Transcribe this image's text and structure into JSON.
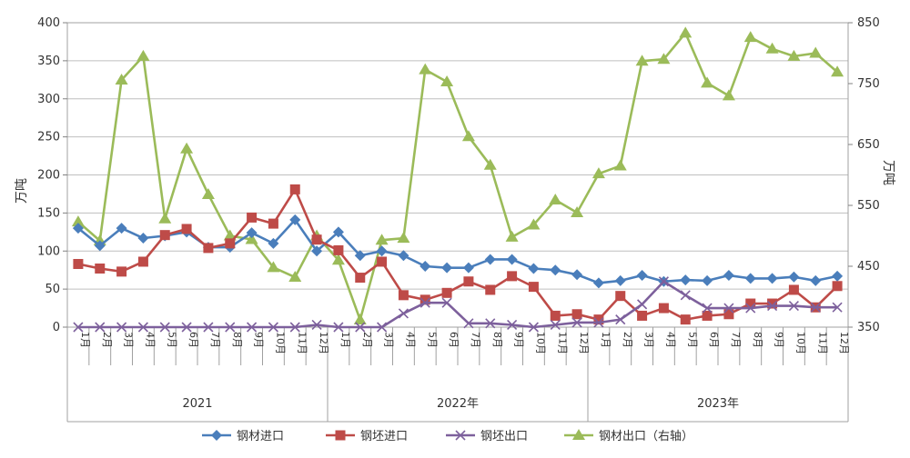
{
  "chart_data": {
    "type": "line",
    "ylabel_left": "万吨",
    "ylabel_right": "万吨",
    "ylim_left": [
      0,
      400
    ],
    "ylim_right": [
      350,
      850
    ],
    "yticks_left": [
      "0",
      "50",
      "100",
      "150",
      "200",
      "250",
      "300",
      "350",
      "400"
    ],
    "yticks_right": [
      "350",
      "450",
      "550",
      "650",
      "750",
      "850"
    ],
    "months": [
      "1月",
      "2月",
      "3月",
      "4月",
      "5月",
      "6月",
      "7月",
      "8月",
      "9月",
      "10月",
      "11月",
      "12月"
    ],
    "years": [
      "2021",
      "2022年",
      "2023年"
    ],
    "grid": true,
    "legend_position": "bottom",
    "series": [
      {
        "name": "钢材进口",
        "axis": "left",
        "color": "#4a7ebb",
        "marker": "diamond",
        "values": [
          130,
          107,
          130,
          117,
          120,
          125,
          105,
          105,
          124,
          110,
          141,
          100,
          125,
          94,
          100,
          94,
          80,
          78,
          78,
          89,
          89,
          77,
          75,
          69,
          58,
          61,
          68,
          60,
          62,
          61,
          68,
          64,
          64,
          66,
          61,
          67
        ]
      },
      {
        "name": "钢坯进口",
        "axis": "left",
        "color": "#be4b48",
        "marker": "square",
        "values": [
          83,
          77,
          73,
          86,
          121,
          129,
          104,
          110,
          144,
          136,
          181,
          115,
          101,
          65,
          86,
          42,
          36,
          45,
          60,
          49,
          67,
          53,
          15,
          17,
          10,
          41,
          15,
          25,
          10,
          15,
          17,
          31,
          31,
          49,
          26,
          54
        ]
      },
      {
        "name": "钢坯出口",
        "axis": "left",
        "color": "#7d609c",
        "marker": "x",
        "values": [
          0,
          0,
          0,
          0,
          0,
          0,
          0,
          0,
          0,
          0,
          0,
          3,
          0,
          0,
          0,
          18,
          32,
          32,
          5,
          5,
          3,
          0,
          3,
          6,
          6,
          10,
          30,
          60,
          42,
          25,
          25,
          25,
          28,
          28,
          26,
          26
        ]
      },
      {
        "name": "钢材出口（右轴）",
        "axis": "right",
        "color": "#9bbb59",
        "marker": "triangle",
        "values": [
          523,
          492,
          756,
          795,
          528,
          643,
          568,
          500,
          494,
          448,
          432,
          500,
          460,
          362,
          493,
          496,
          773,
          753,
          663,
          616,
          498,
          518,
          559,
          538,
          602,
          615,
          787,
          790,
          833,
          751,
          730,
          826,
          807,
          795,
          800,
          769
        ]
      }
    ]
  }
}
